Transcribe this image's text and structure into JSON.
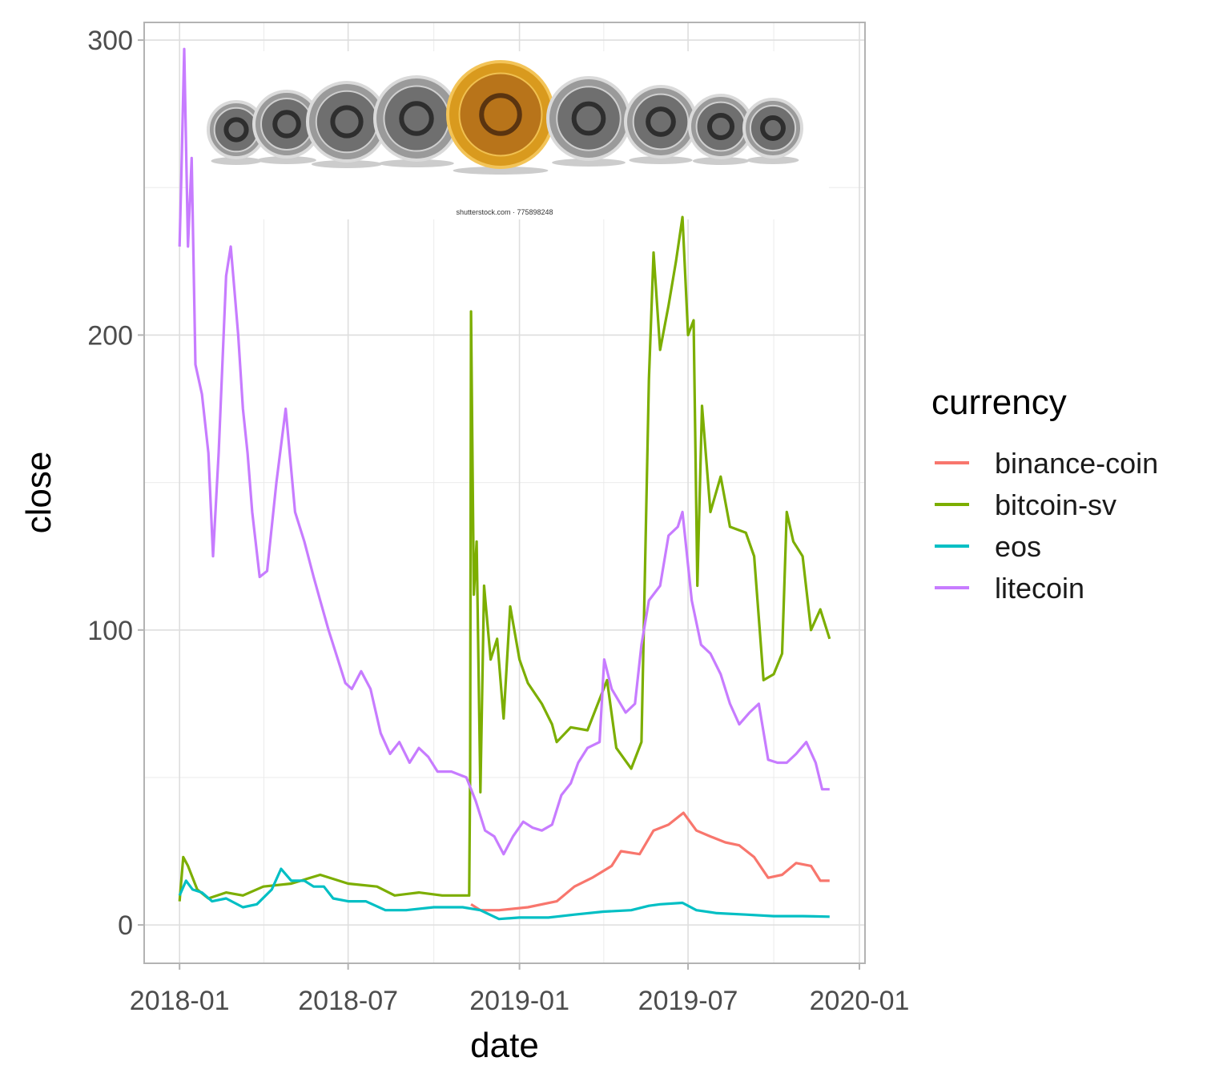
{
  "chart_data": {
    "type": "line",
    "title": "",
    "xlabel": "date",
    "ylabel": "close",
    "x_ticks": [
      "2018-01",
      "2018-07",
      "2019-01",
      "2019-07",
      "2020-01"
    ],
    "y_ticks": [
      "0",
      "100",
      "200",
      "300"
    ],
    "xlim": [
      "2017-11-24",
      "2020-01-07"
    ],
    "ylim": [
      -13,
      306
    ],
    "grid": true,
    "legend": {
      "title": "currency",
      "position": "right"
    },
    "image_caption": "shutterstock.com · 775898248",
    "series": [
      {
        "name": "binance-coin",
        "color": "#F8766D",
        "points": [
          [
            "2018-11-10",
            7
          ],
          [
            "2018-11-20",
            5
          ],
          [
            "2018-12-10",
            5
          ],
          [
            "2019-01-10",
            6
          ],
          [
            "2019-02-10",
            8
          ],
          [
            "2019-03-01",
            13
          ],
          [
            "2019-03-20",
            16
          ],
          [
            "2019-04-10",
            20
          ],
          [
            "2019-04-20",
            25
          ],
          [
            "2019-05-10",
            24
          ],
          [
            "2019-05-25",
            32
          ],
          [
            "2019-06-10",
            34
          ],
          [
            "2019-06-26",
            38
          ],
          [
            "2019-07-10",
            32
          ],
          [
            "2019-07-25",
            30
          ],
          [
            "2019-08-10",
            28
          ],
          [
            "2019-08-25",
            27
          ],
          [
            "2019-09-10",
            23
          ],
          [
            "2019-09-25",
            16
          ],
          [
            "2019-10-10",
            17
          ],
          [
            "2019-10-25",
            21
          ],
          [
            "2019-11-10",
            20
          ],
          [
            "2019-11-20",
            15
          ],
          [
            "2019-11-30",
            15
          ]
        ]
      },
      {
        "name": "bitcoin-sv",
        "color": "#7CAE00",
        "points": [
          [
            "2018-01-01",
            8
          ],
          [
            "2018-01-05",
            23
          ],
          [
            "2018-01-10",
            20
          ],
          [
            "2018-01-20",
            12
          ],
          [
            "2018-02-01",
            9
          ],
          [
            "2018-02-20",
            11
          ],
          [
            "2018-03-10",
            10
          ],
          [
            "2018-04-01",
            13
          ],
          [
            "2018-05-01",
            14
          ],
          [
            "2018-06-01",
            17
          ],
          [
            "2018-07-01",
            14
          ],
          [
            "2018-08-01",
            13
          ],
          [
            "2018-08-20",
            10
          ],
          [
            "2018-09-15",
            11
          ],
          [
            "2018-10-10",
            10
          ],
          [
            "2018-11-08",
            10
          ],
          [
            "2018-11-09",
            52
          ],
          [
            "2018-11-10",
            208
          ],
          [
            "2018-11-13",
            112
          ],
          [
            "2018-11-16",
            130
          ],
          [
            "2018-11-20",
            45
          ],
          [
            "2018-11-24",
            115
          ],
          [
            "2018-12-01",
            90
          ],
          [
            "2018-12-08",
            97
          ],
          [
            "2018-12-15",
            70
          ],
          [
            "2018-12-22",
            108
          ],
          [
            "2019-01-01",
            90
          ],
          [
            "2019-01-10",
            82
          ],
          [
            "2019-01-25",
            75
          ],
          [
            "2019-02-05",
            68
          ],
          [
            "2019-02-10",
            62
          ],
          [
            "2019-02-25",
            67
          ],
          [
            "2019-03-15",
            66
          ],
          [
            "2019-04-05",
            83
          ],
          [
            "2019-04-15",
            60
          ],
          [
            "2019-05-01",
            53
          ],
          [
            "2019-05-12",
            62
          ],
          [
            "2019-05-20",
            185
          ],
          [
            "2019-05-25",
            228
          ],
          [
            "2019-06-01",
            195
          ],
          [
            "2019-06-10",
            210
          ],
          [
            "2019-06-18",
            225
          ],
          [
            "2019-06-25",
            240
          ],
          [
            "2019-07-01",
            200
          ],
          [
            "2019-07-07",
            205
          ],
          [
            "2019-07-11",
            115
          ],
          [
            "2019-07-16",
            176
          ],
          [
            "2019-07-25",
            140
          ],
          [
            "2019-08-05",
            152
          ],
          [
            "2019-08-15",
            135
          ],
          [
            "2019-09-01",
            133
          ],
          [
            "2019-09-10",
            125
          ],
          [
            "2019-09-20",
            83
          ],
          [
            "2019-10-01",
            85
          ],
          [
            "2019-10-10",
            92
          ],
          [
            "2019-10-15",
            140
          ],
          [
            "2019-10-22",
            130
          ],
          [
            "2019-11-01",
            125
          ],
          [
            "2019-11-10",
            100
          ],
          [
            "2019-11-20",
            107
          ],
          [
            "2019-11-30",
            97
          ]
        ]
      },
      {
        "name": "eos",
        "color": "#00BFC4",
        "points": [
          [
            "2018-01-01",
            10
          ],
          [
            "2018-01-08",
            15
          ],
          [
            "2018-01-15",
            12
          ],
          [
            "2018-01-25",
            11
          ],
          [
            "2018-02-05",
            8
          ],
          [
            "2018-02-20",
            9
          ],
          [
            "2018-03-10",
            6
          ],
          [
            "2018-03-25",
            7
          ],
          [
            "2018-04-10",
            12
          ],
          [
            "2018-04-20",
            19
          ],
          [
            "2018-05-01",
            15
          ],
          [
            "2018-05-15",
            15
          ],
          [
            "2018-05-25",
            13
          ],
          [
            "2018-06-05",
            13
          ],
          [
            "2018-06-15",
            9
          ],
          [
            "2018-07-01",
            8
          ],
          [
            "2018-07-20",
            8
          ],
          [
            "2018-08-10",
            5
          ],
          [
            "2018-09-01",
            5
          ],
          [
            "2018-10-01",
            6
          ],
          [
            "2018-11-01",
            6
          ],
          [
            "2018-11-20",
            5
          ],
          [
            "2018-12-10",
            2
          ],
          [
            "2019-01-01",
            2.5
          ],
          [
            "2019-02-01",
            2.5
          ],
          [
            "2019-03-01",
            3.5
          ],
          [
            "2019-04-01",
            4.5
          ],
          [
            "2019-05-01",
            5
          ],
          [
            "2019-05-20",
            6.5
          ],
          [
            "2019-06-01",
            7
          ],
          [
            "2019-06-25",
            7.5
          ],
          [
            "2019-07-10",
            5
          ],
          [
            "2019-08-01",
            4
          ],
          [
            "2019-09-01",
            3.5
          ],
          [
            "2019-10-01",
            3
          ],
          [
            "2019-11-01",
            3
          ],
          [
            "2019-11-30",
            2.8
          ]
        ]
      },
      {
        "name": "litecoin",
        "color": "#C77CFF",
        "points": [
          [
            "2018-01-01",
            230
          ],
          [
            "2018-01-03",
            255
          ],
          [
            "2018-01-06",
            297
          ],
          [
            "2018-01-10",
            230
          ],
          [
            "2018-01-14",
            260
          ],
          [
            "2018-01-18",
            190
          ],
          [
            "2018-01-25",
            180
          ],
          [
            "2018-02-01",
            160
          ],
          [
            "2018-02-06",
            125
          ],
          [
            "2018-02-12",
            160
          ],
          [
            "2018-02-20",
            220
          ],
          [
            "2018-02-25",
            230
          ],
          [
            "2018-03-01",
            215
          ],
          [
            "2018-03-05",
            200
          ],
          [
            "2018-03-10",
            175
          ],
          [
            "2018-03-15",
            160
          ],
          [
            "2018-03-20",
            140
          ],
          [
            "2018-03-28",
            118
          ],
          [
            "2018-04-05",
            120
          ],
          [
            "2018-04-15",
            150
          ],
          [
            "2018-04-25",
            175
          ],
          [
            "2018-05-05",
            140
          ],
          [
            "2018-05-15",
            130
          ],
          [
            "2018-05-25",
            118
          ],
          [
            "2018-06-01",
            110
          ],
          [
            "2018-06-10",
            100
          ],
          [
            "2018-06-20",
            90
          ],
          [
            "2018-06-28",
            82
          ],
          [
            "2018-07-05",
            80
          ],
          [
            "2018-07-15",
            86
          ],
          [
            "2018-07-25",
            80
          ],
          [
            "2018-08-05",
            65
          ],
          [
            "2018-08-15",
            58
          ],
          [
            "2018-08-25",
            62
          ],
          [
            "2018-09-05",
            55
          ],
          [
            "2018-09-15",
            60
          ],
          [
            "2018-09-25",
            57
          ],
          [
            "2018-10-05",
            52
          ],
          [
            "2018-10-20",
            52
          ],
          [
            "2018-11-05",
            50
          ],
          [
            "2018-11-15",
            42
          ],
          [
            "2018-11-25",
            32
          ],
          [
            "2018-12-05",
            30
          ],
          [
            "2018-12-15",
            24
          ],
          [
            "2018-12-25",
            30
          ],
          [
            "2019-01-05",
            35
          ],
          [
            "2019-01-15",
            33
          ],
          [
            "2019-01-25",
            32
          ],
          [
            "2019-02-05",
            34
          ],
          [
            "2019-02-15",
            44
          ],
          [
            "2019-02-25",
            48
          ],
          [
            "2019-03-05",
            55
          ],
          [
            "2019-03-15",
            60
          ],
          [
            "2019-03-28",
            62
          ],
          [
            "2019-04-02",
            90
          ],
          [
            "2019-04-10",
            80
          ],
          [
            "2019-04-25",
            72
          ],
          [
            "2019-05-05",
            75
          ],
          [
            "2019-05-12",
            95
          ],
          [
            "2019-05-20",
            110
          ],
          [
            "2019-06-01",
            115
          ],
          [
            "2019-06-10",
            132
          ],
          [
            "2019-06-20",
            135
          ],
          [
            "2019-06-25",
            140
          ],
          [
            "2019-07-05",
            110
          ],
          [
            "2019-07-15",
            95
          ],
          [
            "2019-07-25",
            92
          ],
          [
            "2019-08-05",
            85
          ],
          [
            "2019-08-15",
            75
          ],
          [
            "2019-08-25",
            68
          ],
          [
            "2019-09-05",
            72
          ],
          [
            "2019-09-15",
            75
          ],
          [
            "2019-09-25",
            56
          ],
          [
            "2019-10-05",
            55
          ],
          [
            "2019-10-15",
            55
          ],
          [
            "2019-10-25",
            58
          ],
          [
            "2019-11-05",
            62
          ],
          [
            "2019-11-15",
            55
          ],
          [
            "2019-11-22",
            46
          ],
          [
            "2019-11-30",
            46
          ]
        ]
      }
    ]
  }
}
